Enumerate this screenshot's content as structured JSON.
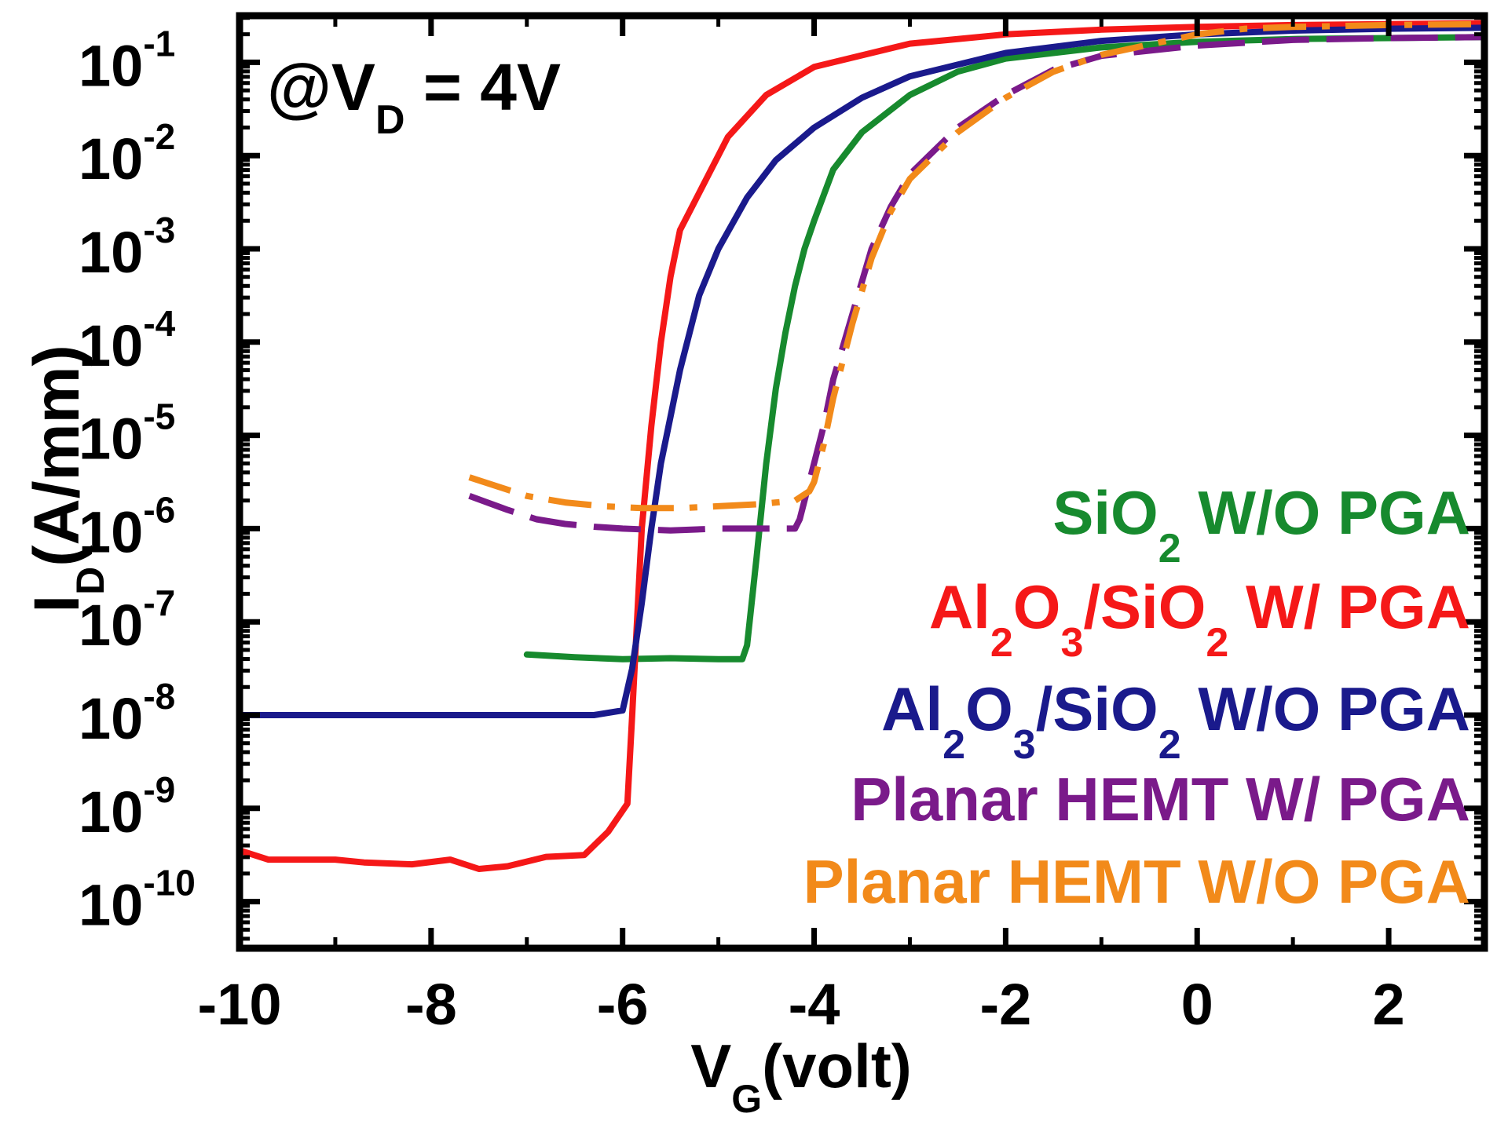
{
  "chart_data": {
    "type": "line",
    "title": "",
    "annotation": {
      "prefix": "@V",
      "sub": "D",
      "suffix": "= 4V"
    },
    "xlabel": {
      "main": "V",
      "sub": "G",
      "rest": "(volt)"
    },
    "ylabel": {
      "main": "I",
      "sub": "D",
      "rest": "(A/mm)"
    },
    "xlim": [
      -10,
      3
    ],
    "ylim_log10": [
      -10.5,
      -0.5
    ],
    "x_ticks": [
      {
        "value": -10,
        "label": "-10"
      },
      {
        "value": -8,
        "label": "-8"
      },
      {
        "value": -6,
        "label": "-6"
      },
      {
        "value": -4,
        "label": "-4"
      },
      {
        "value": -2,
        "label": "-2"
      },
      {
        "value": 0,
        "label": "0"
      },
      {
        "value": 2,
        "label": "2"
      }
    ],
    "y_ticks": [
      {
        "exp": -1,
        "base": "10",
        "sup": "-1"
      },
      {
        "exp": -2,
        "base": "10",
        "sup": "-2"
      },
      {
        "exp": -3,
        "base": "10",
        "sup": "-3"
      },
      {
        "exp": -4,
        "base": "10",
        "sup": "-4"
      },
      {
        "exp": -5,
        "base": "10",
        "sup": "-5"
      },
      {
        "exp": -6,
        "base": "10",
        "sup": "-6"
      },
      {
        "exp": -7,
        "base": "10",
        "sup": "-7"
      },
      {
        "exp": -8,
        "base": "10",
        "sup": "-8"
      },
      {
        "exp": -9,
        "base": "10",
        "sup": "-9"
      },
      {
        "exp": -10,
        "base": "10",
        "sup": "-10"
      }
    ],
    "legend_position": "right",
    "series": [
      {
        "name": "SiO2 W/O PGA",
        "legend": [
          {
            "t": "SiO"
          },
          {
            "t": "2",
            "sub": true
          },
          {
            "t": " W/O PGA"
          }
        ],
        "color": "#178a2e",
        "dash": "solid",
        "x": [
          -7.0,
          -6.5,
          -6.0,
          -5.5,
          -5.0,
          -4.75,
          -4.7,
          -4.6,
          -4.5,
          -4.4,
          -4.3,
          -4.2,
          -4.1,
          -4.0,
          -3.8,
          -3.5,
          -3.0,
          -2.5,
          -2.0,
          -1.0,
          0.0,
          1.0,
          2.0,
          3.0
        ],
        "y": [
          -7.35,
          -7.38,
          -7.4,
          -7.39,
          -7.4,
          -7.4,
          -7.25,
          -6.3,
          -5.3,
          -4.5,
          -3.9,
          -3.4,
          -3.0,
          -2.7,
          -2.15,
          -1.75,
          -1.35,
          -1.1,
          -0.96,
          -0.84,
          -0.78,
          -0.75,
          -0.74,
          -0.73
        ]
      },
      {
        "name": "Al2O3/SiO2 W/ PGA",
        "legend": [
          {
            "t": "Al"
          },
          {
            "t": "2",
            "sub": true
          },
          {
            "t": "O"
          },
          {
            "t": "3",
            "sub": true
          },
          {
            "t": "/SiO"
          },
          {
            "t": "2",
            "sub": true
          },
          {
            "t": " W/ PGA"
          }
        ],
        "color": "#f51818",
        "dash": "solid",
        "x": [
          -10.0,
          -9.7,
          -9.3,
          -9.0,
          -8.7,
          -8.2,
          -7.8,
          -7.5,
          -7.2,
          -6.8,
          -6.4,
          -6.15,
          -5.95,
          -5.9,
          -5.85,
          -5.8,
          -5.7,
          -5.6,
          -5.5,
          -5.4,
          -5.2,
          -4.9,
          -4.5,
          -4.0,
          -3.0,
          -2.0,
          -1.0,
          0.0,
          1.0,
          2.0,
          3.0
        ],
        "y": [
          -9.45,
          -9.55,
          -9.55,
          -9.55,
          -9.58,
          -9.6,
          -9.55,
          -9.65,
          -9.62,
          -9.52,
          -9.5,
          -9.25,
          -8.95,
          -8.0,
          -7.0,
          -6.0,
          -4.9,
          -4.0,
          -3.3,
          -2.8,
          -2.4,
          -1.8,
          -1.35,
          -1.05,
          -0.8,
          -0.7,
          -0.65,
          -0.62,
          -0.6,
          -0.59,
          -0.58
        ]
      },
      {
        "name": "Al2O3/SiO2 W/O PGA",
        "legend": [
          {
            "t": "Al"
          },
          {
            "t": "2",
            "sub": true
          },
          {
            "t": "O"
          },
          {
            "t": "3",
            "sub": true
          },
          {
            "t": "/SiO"
          },
          {
            "t": "2",
            "sub": true
          },
          {
            "t": " W/O PGA"
          }
        ],
        "color": "#1a1a8c",
        "dash": "solid",
        "x": [
          -10.0,
          -9.0,
          -8.0,
          -7.0,
          -6.3,
          -6.0,
          -5.9,
          -5.8,
          -5.7,
          -5.6,
          -5.5,
          -5.4,
          -5.3,
          -5.2,
          -5.0,
          -4.7,
          -4.4,
          -4.0,
          -3.5,
          -3.0,
          -2.0,
          -1.0,
          0.0,
          1.0,
          2.0,
          3.0
        ],
        "y": [
          -8.0,
          -8.0,
          -8.0,
          -8.0,
          -8.0,
          -7.95,
          -7.5,
          -6.8,
          -6.0,
          -5.3,
          -4.8,
          -4.3,
          -3.9,
          -3.5,
          -3.0,
          -2.45,
          -2.05,
          -1.7,
          -1.38,
          -1.15,
          -0.9,
          -0.77,
          -0.7,
          -0.66,
          -0.64,
          -0.63
        ]
      },
      {
        "name": "Planar HEMT W/ PGA",
        "legend": [
          {
            "t": "Planar HEMT W/ PGA"
          }
        ],
        "color": "#7a1a8a",
        "dash": "dash",
        "x": [
          -7.6,
          -7.2,
          -6.9,
          -6.6,
          -6.3,
          -6.0,
          -5.5,
          -5.0,
          -4.5,
          -4.2,
          -4.15,
          -4.1,
          -4.0,
          -3.9,
          -3.8,
          -3.6,
          -3.4,
          -3.2,
          -3.0,
          -2.5,
          -2.0,
          -1.5,
          -1.0,
          0.0,
          1.0,
          2.0,
          3.0
        ],
        "y": [
          -5.65,
          -5.8,
          -5.9,
          -5.95,
          -5.98,
          -6.0,
          -6.02,
          -6.0,
          -6.0,
          -6.0,
          -5.9,
          -5.7,
          -5.3,
          -4.9,
          -4.4,
          -3.7,
          -3.0,
          -2.55,
          -2.2,
          -1.7,
          -1.35,
          -1.08,
          -0.93,
          -0.82,
          -0.76,
          -0.74,
          -0.73
        ]
      },
      {
        "name": "Planar HEMT W/O PGA",
        "legend": [
          {
            "t": "Planar HEMT W/O PGA"
          }
        ],
        "color": "#f28a1a",
        "dash": "dashdot",
        "x": [
          -7.6,
          -7.3,
          -7.0,
          -6.6,
          -6.2,
          -5.8,
          -5.4,
          -5.0,
          -4.6,
          -4.2,
          -4.05,
          -4.0,
          -3.9,
          -3.8,
          -3.6,
          -3.4,
          -3.2,
          -3.0,
          -2.5,
          -2.0,
          -1.5,
          -1.0,
          0.0,
          0.5,
          1.0,
          2.0,
          3.0
        ],
        "y": [
          -5.45,
          -5.55,
          -5.65,
          -5.72,
          -5.76,
          -5.78,
          -5.78,
          -5.76,
          -5.74,
          -5.7,
          -5.6,
          -5.5,
          -5.1,
          -4.6,
          -3.8,
          -3.1,
          -2.6,
          -2.25,
          -1.75,
          -1.38,
          -1.1,
          -0.92,
          -0.7,
          -0.64,
          -0.62,
          -0.6,
          -0.59
        ]
      }
    ]
  }
}
